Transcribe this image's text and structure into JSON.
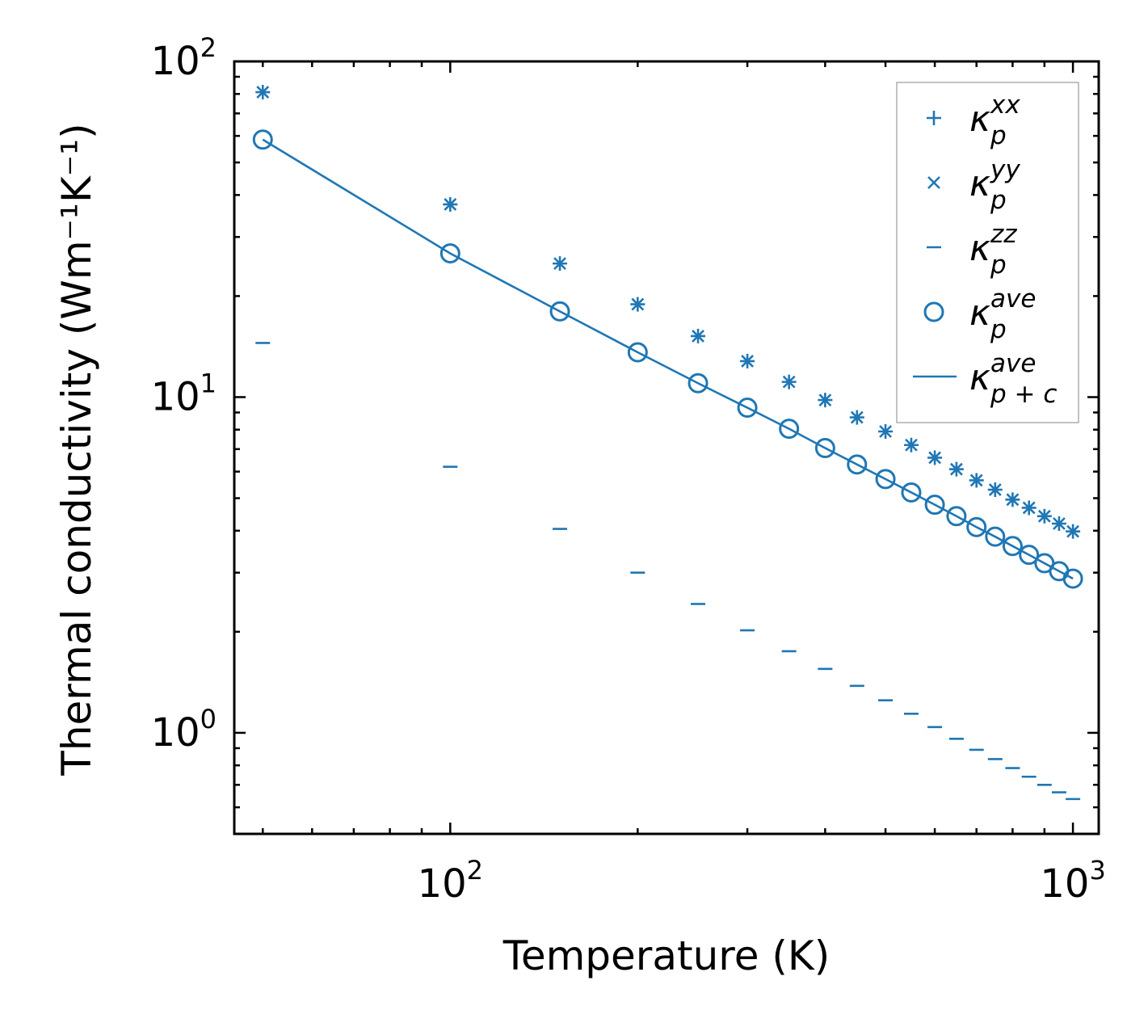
{
  "chart_data": {
    "type": "scatter",
    "x_scale": "log",
    "y_scale": "log",
    "xlabel": "Temperature (K)",
    "ylabel": "Thermal conductivity (Wm⁻¹K⁻¹)",
    "xlim": [
      45,
      1100
    ],
    "ylim": [
      0.5,
      100
    ],
    "x_ticks": [
      {
        "value": 100,
        "base": "10",
        "exp": "2"
      },
      {
        "value": 1000,
        "base": "10",
        "exp": "3"
      }
    ],
    "y_ticks": [
      {
        "value": 1,
        "base": "10",
        "exp": "0"
      },
      {
        "value": 10,
        "base": "10",
        "exp": "1"
      },
      {
        "value": 100,
        "base": "10",
        "exp": "2"
      }
    ],
    "color": "#1f77b4",
    "x": [
      50,
      100,
      150,
      200,
      250,
      300,
      350,
      400,
      450,
      500,
      550,
      600,
      650,
      700,
      750,
      800,
      850,
      900,
      950,
      1000
    ],
    "series": [
      {
        "name": "xx",
        "label_base": "κ",
        "label_sub": "p",
        "label_sup": "xx",
        "marker": "plus",
        "values": [
          81,
          37.5,
          25,
          18.9,
          15.2,
          12.8,
          11.1,
          9.8,
          8.7,
          7.9,
          7.2,
          6.6,
          6.1,
          5.65,
          5.3,
          4.95,
          4.68,
          4.42,
          4.2,
          3.98
        ]
      },
      {
        "name": "yy",
        "label_base": "κ",
        "label_sub": "p",
        "label_sup": "yy",
        "marker": "x",
        "values": [
          81,
          37.5,
          25,
          18.9,
          15.2,
          12.8,
          11.1,
          9.8,
          8.7,
          7.9,
          7.2,
          6.6,
          6.1,
          5.65,
          5.3,
          4.95,
          4.68,
          4.42,
          4.2,
          3.98
        ]
      },
      {
        "name": "zz",
        "label_base": "κ",
        "label_sub": "p",
        "label_sup": "zz",
        "marker": "hline",
        "values": [
          14.5,
          6.2,
          4.05,
          3.0,
          2.42,
          2.02,
          1.75,
          1.55,
          1.38,
          1.25,
          1.14,
          1.04,
          0.96,
          0.89,
          0.835,
          0.785,
          0.74,
          0.7,
          0.665,
          0.635
        ]
      },
      {
        "name": "ave",
        "label_base": "κ",
        "label_sub": "p",
        "label_sup": "ave",
        "marker": "circle",
        "values": [
          58.5,
          26.8,
          18.0,
          13.6,
          11.0,
          9.3,
          8.05,
          7.05,
          6.3,
          5.7,
          5.2,
          4.78,
          4.42,
          4.1,
          3.84,
          3.6,
          3.39,
          3.2,
          3.03,
          2.88
        ]
      },
      {
        "name": "ave_pc",
        "label_base": "κ",
        "label_sub": "p + c",
        "label_sup": "ave",
        "marker": "line",
        "values": [
          58.5,
          26.8,
          18.0,
          13.6,
          11.0,
          9.3,
          8.05,
          7.05,
          6.3,
          5.7,
          5.2,
          4.78,
          4.42,
          4.1,
          3.84,
          3.6,
          3.39,
          3.2,
          3.03,
          2.88
        ]
      }
    ],
    "legend": "top-right",
    "grid": false
  }
}
